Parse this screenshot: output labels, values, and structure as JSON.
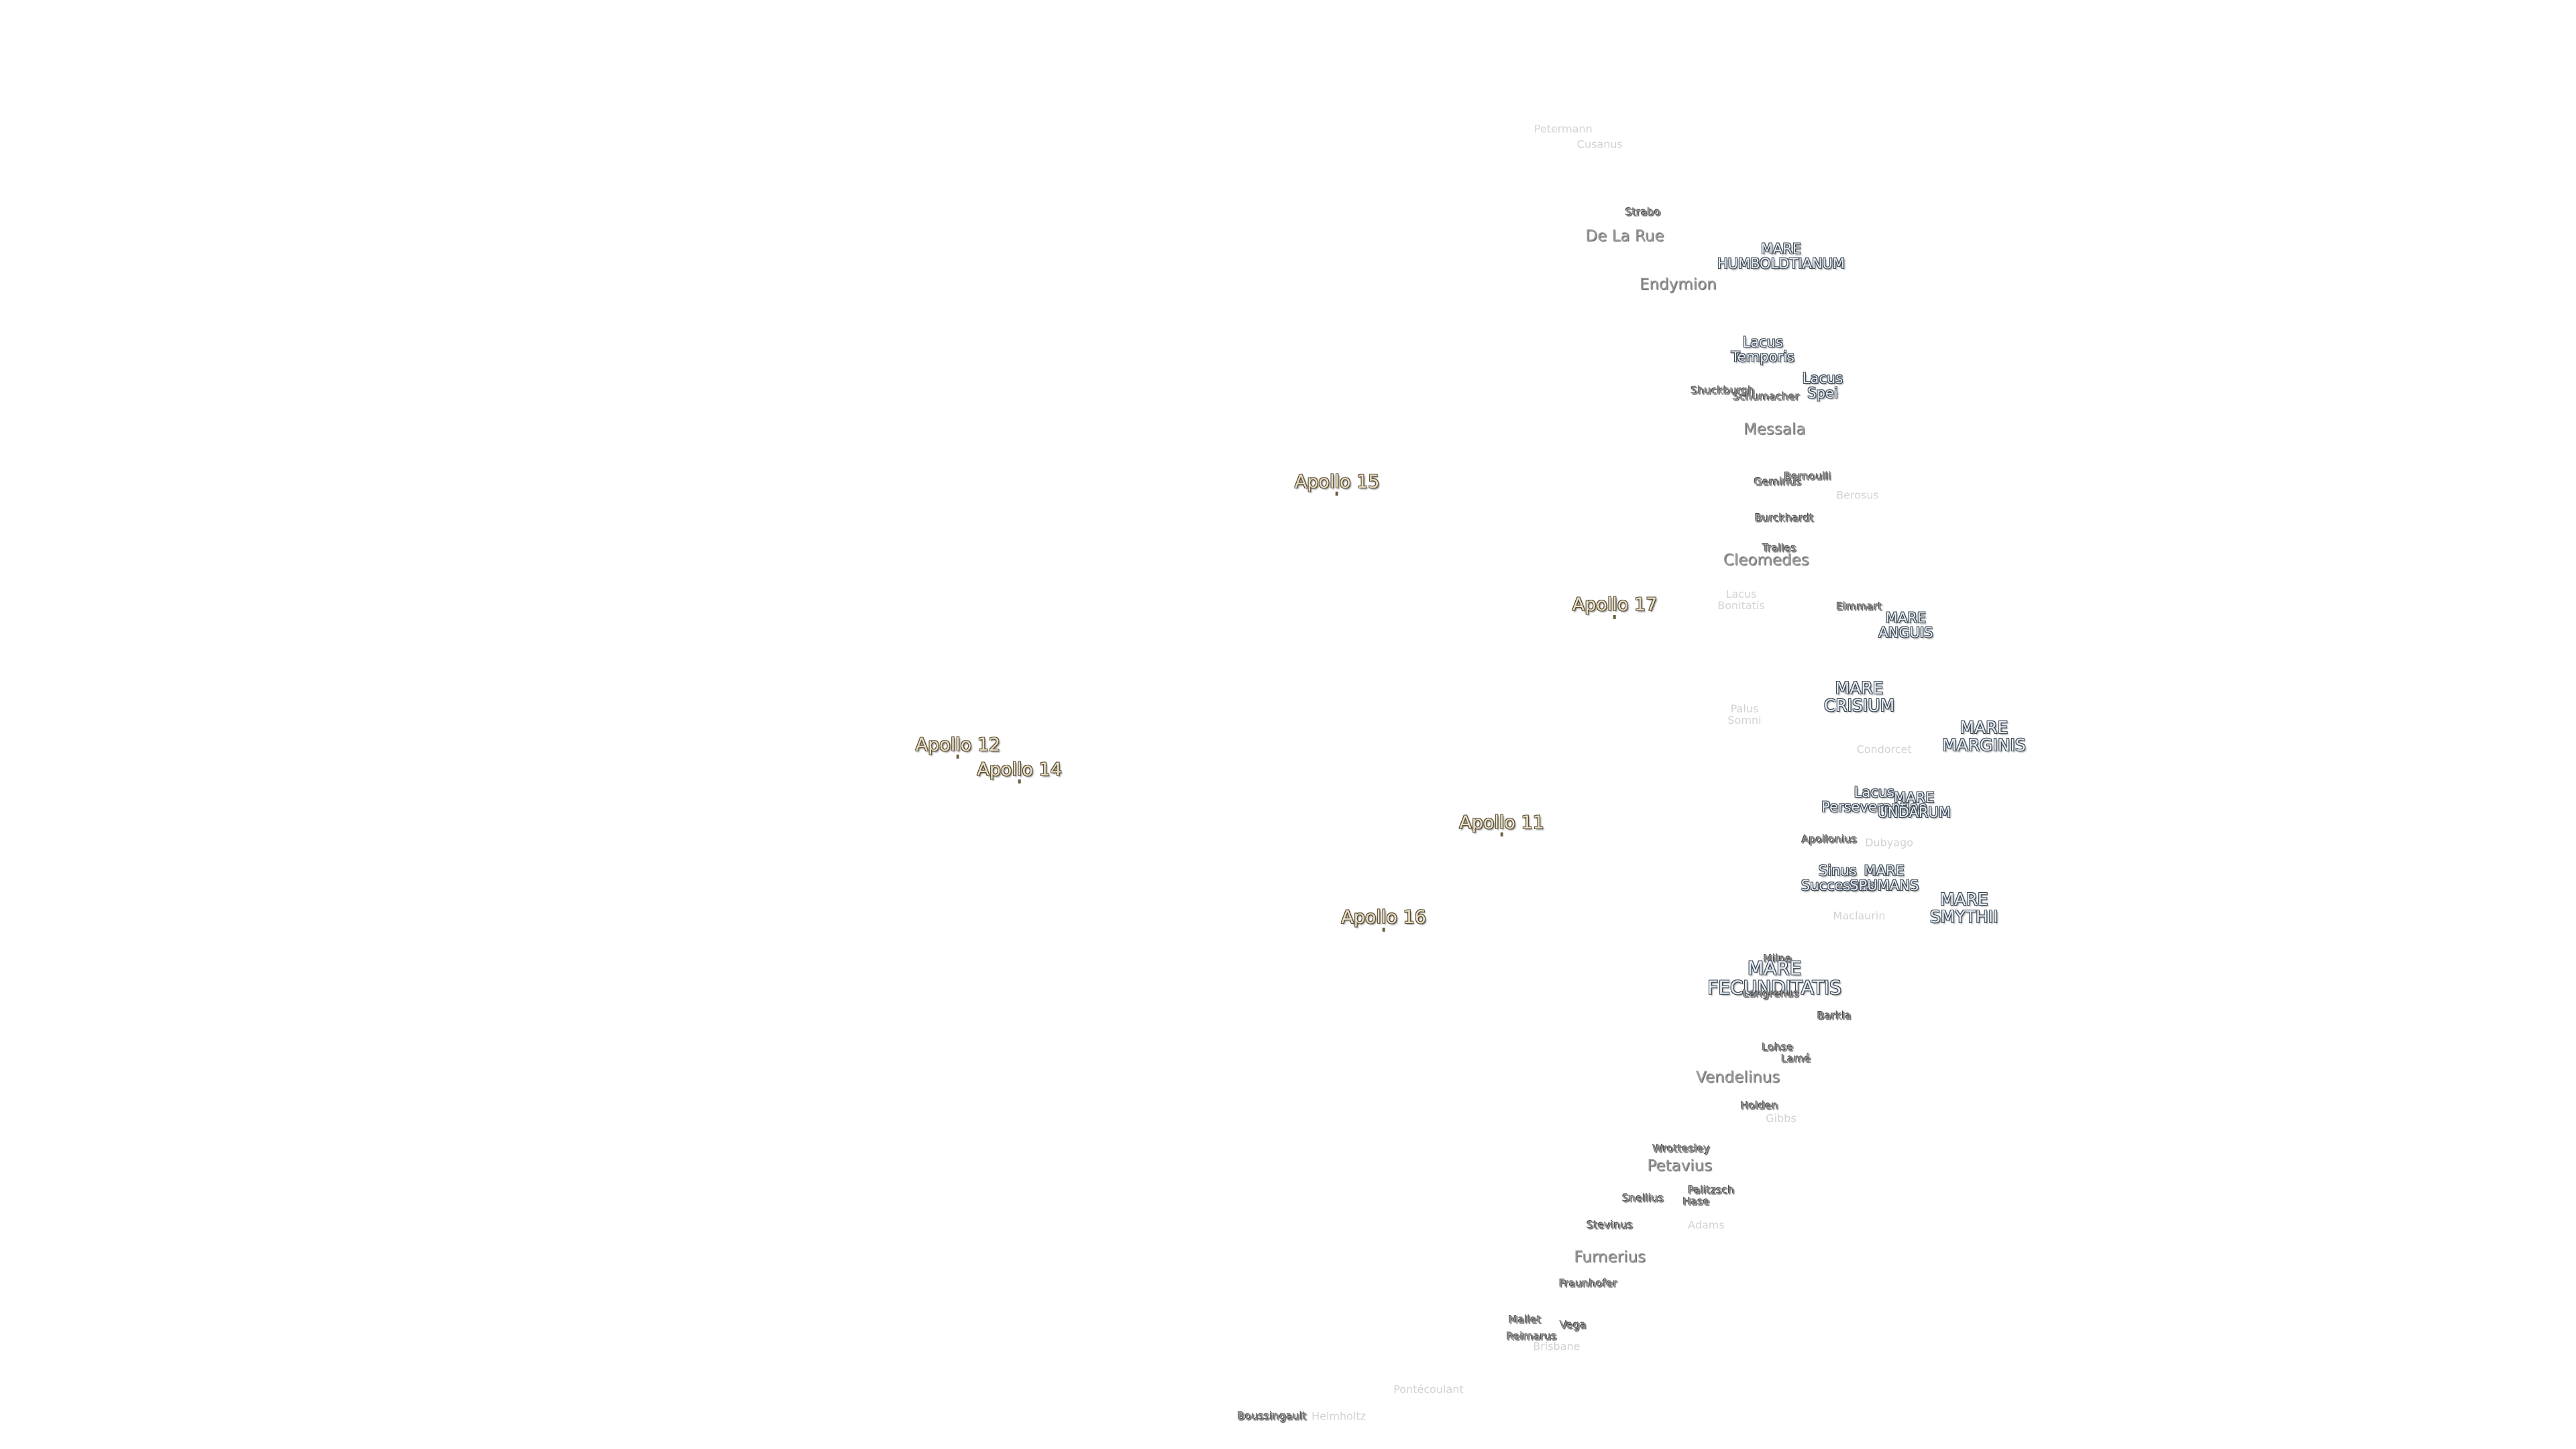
{
  "labels": [
    "Petermann",
    "Cusanus",
    "Strabo",
    "De La Rue",
    [
      "MARE",
      "HUMBOLDTIANUM"
    ],
    "Endymion",
    [
      "Lacus",
      "Temporis"
    ],
    [
      "Lacus",
      "Spei"
    ],
    "Shuckburgh",
    "Schumacher",
    "Messala",
    "Apollo 15",
    "Geminus",
    "Bernoulli",
    "Berosus",
    "Burckhardt",
    "Tralles",
    "Cleomedes",
    "Apollo 17",
    [
      "Lacus",
      "Bonitatis"
    ],
    "Eimmart",
    [
      "MARE",
      "ANGUIS"
    ],
    [
      "MARE",
      "CRISIUM"
    ],
    [
      "MARE",
      "MARGINIS"
    ],
    [
      "Palus",
      "Somni"
    ],
    "Condorcet",
    "Apollo 12",
    "Apollo 14",
    [
      "Lacus",
      "Perseverantiae"
    ],
    [
      "MARE",
      "UNDARUM"
    ],
    "Apollo 11",
    "Apollonius",
    "Dubyago",
    [
      "Sinus",
      "Successus"
    ],
    [
      "MARE",
      "SPUMANS"
    ],
    [
      "MARE",
      "SMYTHII"
    ],
    "Maclaurin",
    "Apollo 16",
    "Milne",
    [
      "MARE",
      "FECUNDITATIS"
    ],
    "Langrenus",
    "Barkla",
    "Lohse",
    "Lamé",
    "Vendelinus",
    "Holden",
    "Gibbs",
    "Wrottesley",
    "Petavius",
    "Snellius",
    "Palitzsch",
    "Hase",
    "Stevinus",
    "Adams",
    "Furnerius",
    "Fraunhofer",
    "Mallet",
    "Vega",
    "Reimarus",
    "Brisbane",
    "Pontécoulant",
    "Boussingault",
    "Helmholtz"
  ]
}
